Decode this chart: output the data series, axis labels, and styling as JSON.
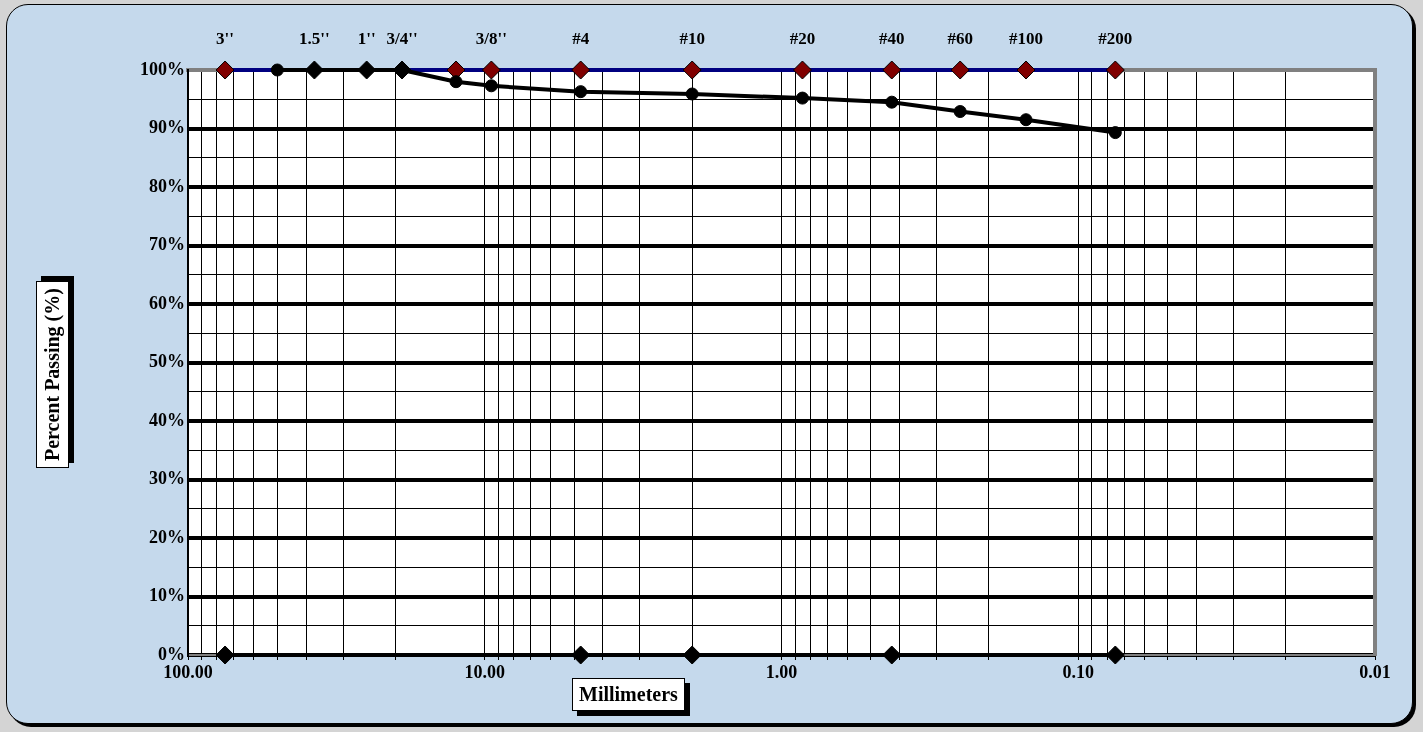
{
  "chart_data": {
    "type": "line",
    "xlabel": "Millimeters",
    "ylabel": "Percent Passing (%)",
    "log": "x",
    "grid": true,
    "legend": false,
    "xlim": [
      100,
      0.01
    ],
    "xticks": [
      {
        "value": 100,
        "label": "100.00"
      },
      {
        "value": 90,
        "label": null
      },
      {
        "value": 80,
        "label": null
      },
      {
        "value": 70,
        "label": null
      },
      {
        "value": 60,
        "label": null
      },
      {
        "value": 50,
        "label": null
      },
      {
        "value": 40,
        "label": null
      },
      {
        "value": 30,
        "label": null
      },
      {
        "value": 20,
        "label": null
      },
      {
        "value": 10,
        "label": "10.00"
      },
      {
        "value": 9,
        "label": null
      },
      {
        "value": 8,
        "label": null
      },
      {
        "value": 7,
        "label": null
      },
      {
        "value": 6,
        "label": null
      },
      {
        "value": 5,
        "label": null
      },
      {
        "value": 4,
        "label": null
      },
      {
        "value": 3,
        "label": null
      },
      {
        "value": 2,
        "label": null
      },
      {
        "value": 1,
        "label": "1.00"
      },
      {
        "value": 0.9,
        "label": null
      },
      {
        "value": 0.8,
        "label": null
      },
      {
        "value": 0.7,
        "label": null
      },
      {
        "value": 0.6,
        "label": null
      },
      {
        "value": 0.5,
        "label": null
      },
      {
        "value": 0.4,
        "label": null
      },
      {
        "value": 0.3,
        "label": null
      },
      {
        "value": 0.2,
        "label": null
      },
      {
        "value": 0.1,
        "label": "0.10"
      },
      {
        "value": 0.09,
        "label": null
      },
      {
        "value": 0.08,
        "label": null
      },
      {
        "value": 0.07,
        "label": null
      },
      {
        "value": 0.06,
        "label": null
      },
      {
        "value": 0.05,
        "label": null
      },
      {
        "value": 0.04,
        "label": null
      },
      {
        "value": 0.03,
        "label": null
      },
      {
        "value": 0.02,
        "label": null
      },
      {
        "value": 0.01,
        "label": "0.01"
      }
    ],
    "annotations": [
      {
        "text": "3''",
        "x": 75,
        "y": 100
      },
      {
        "text": "1.5''",
        "x": 37.5,
        "y": 100
      },
      {
        "text": "1''",
        "x": 25,
        "y": 100
      },
      {
        "text": "3/4''",
        "x": 19,
        "y": 100
      },
      {
        "text": "3/8''",
        "x": 9.5,
        "y": 100
      },
      {
        "text": "#4",
        "x": 4.75,
        "y": 100
      },
      {
        "text": "#10",
        "x": 2,
        "y": 100
      },
      {
        "text": "#20",
        "x": 0.85,
        "y": 100
      },
      {
        "text": "#40",
        "x": 0.425,
        "y": 100
      },
      {
        "text": "#60",
        "x": 0.25,
        "y": 100
      },
      {
        "text": "#100",
        "x": 0.15,
        "y": 100
      },
      {
        "text": "#200",
        "x": 0.075,
        "y": 100
      }
    ],
    "ylim": [
      0,
      100
    ],
    "yticks": [
      {
        "value": 0,
        "label": "0%"
      },
      {
        "value": 5,
        "label": null
      },
      {
        "value": 10,
        "label": "10%"
      },
      {
        "value": 15,
        "label": null
      },
      {
        "value": 20,
        "label": "20%"
      },
      {
        "value": 25,
        "label": null
      },
      {
        "value": 30,
        "label": "30%"
      },
      {
        "value": 35,
        "label": null
      },
      {
        "value": 40,
        "label": "40%"
      },
      {
        "value": 45,
        "label": null
      },
      {
        "value": 50,
        "label": "50%"
      },
      {
        "value": 55,
        "label": null
      },
      {
        "value": 60,
        "label": "60%"
      },
      {
        "value": 65,
        "label": null
      },
      {
        "value": 70,
        "label": "70%"
      },
      {
        "value": 75,
        "label": null
      },
      {
        "value": 80,
        "label": "80%"
      },
      {
        "value": 85,
        "label": null
      },
      {
        "value": 90,
        "label": "90%"
      },
      {
        "value": 95,
        "label": null
      },
      {
        "value": 100,
        "label": "100%"
      }
    ],
    "series": [
      {
        "color": "#000080",
        "marker": "none",
        "x": [
          75,
          12.5,
          9.5,
          4.75,
          2,
          0.85,
          0.425,
          0.25,
          0.15,
          0.075
        ],
        "values": [
          100,
          100,
          100,
          100,
          100,
          100,
          100,
          100,
          100,
          100
        ]
      },
      {
        "type": "scatter",
        "color": "#800000",
        "marker": "diamond",
        "x": [
          75,
          12.5,
          9.5,
          4.75,
          2,
          0.85,
          0.425,
          0.25,
          0.15,
          0.075
        ],
        "values": [
          100,
          100,
          100,
          100,
          100,
          100,
          100,
          100,
          100,
          100
        ]
      },
      {
        "color": "#000000",
        "marker": "diamond",
        "x": [
          75,
          4.75,
          2,
          0.425,
          0.075
        ],
        "values": [
          0,
          0,
          0,
          0,
          0
        ]
      },
      {
        "color": "#000000",
        "marker": "circle",
        "x": [
          50,
          37.5,
          25,
          19,
          12.5,
          9.5,
          4.75,
          2,
          0.85,
          0.425,
          0.25,
          0.15,
          0.075
        ],
        "values": [
          100,
          100,
          100,
          100,
          98,
          97.3,
          96.3,
          95.9,
          95.2,
          94.5,
          92.9,
          91.5,
          89.3
        ]
      },
      {
        "type": "scatter",
        "color": "#000000",
        "marker": "diamond",
        "x": [
          37.5,
          25,
          19
        ],
        "values": [
          100,
          100,
          100
        ]
      }
    ]
  }
}
